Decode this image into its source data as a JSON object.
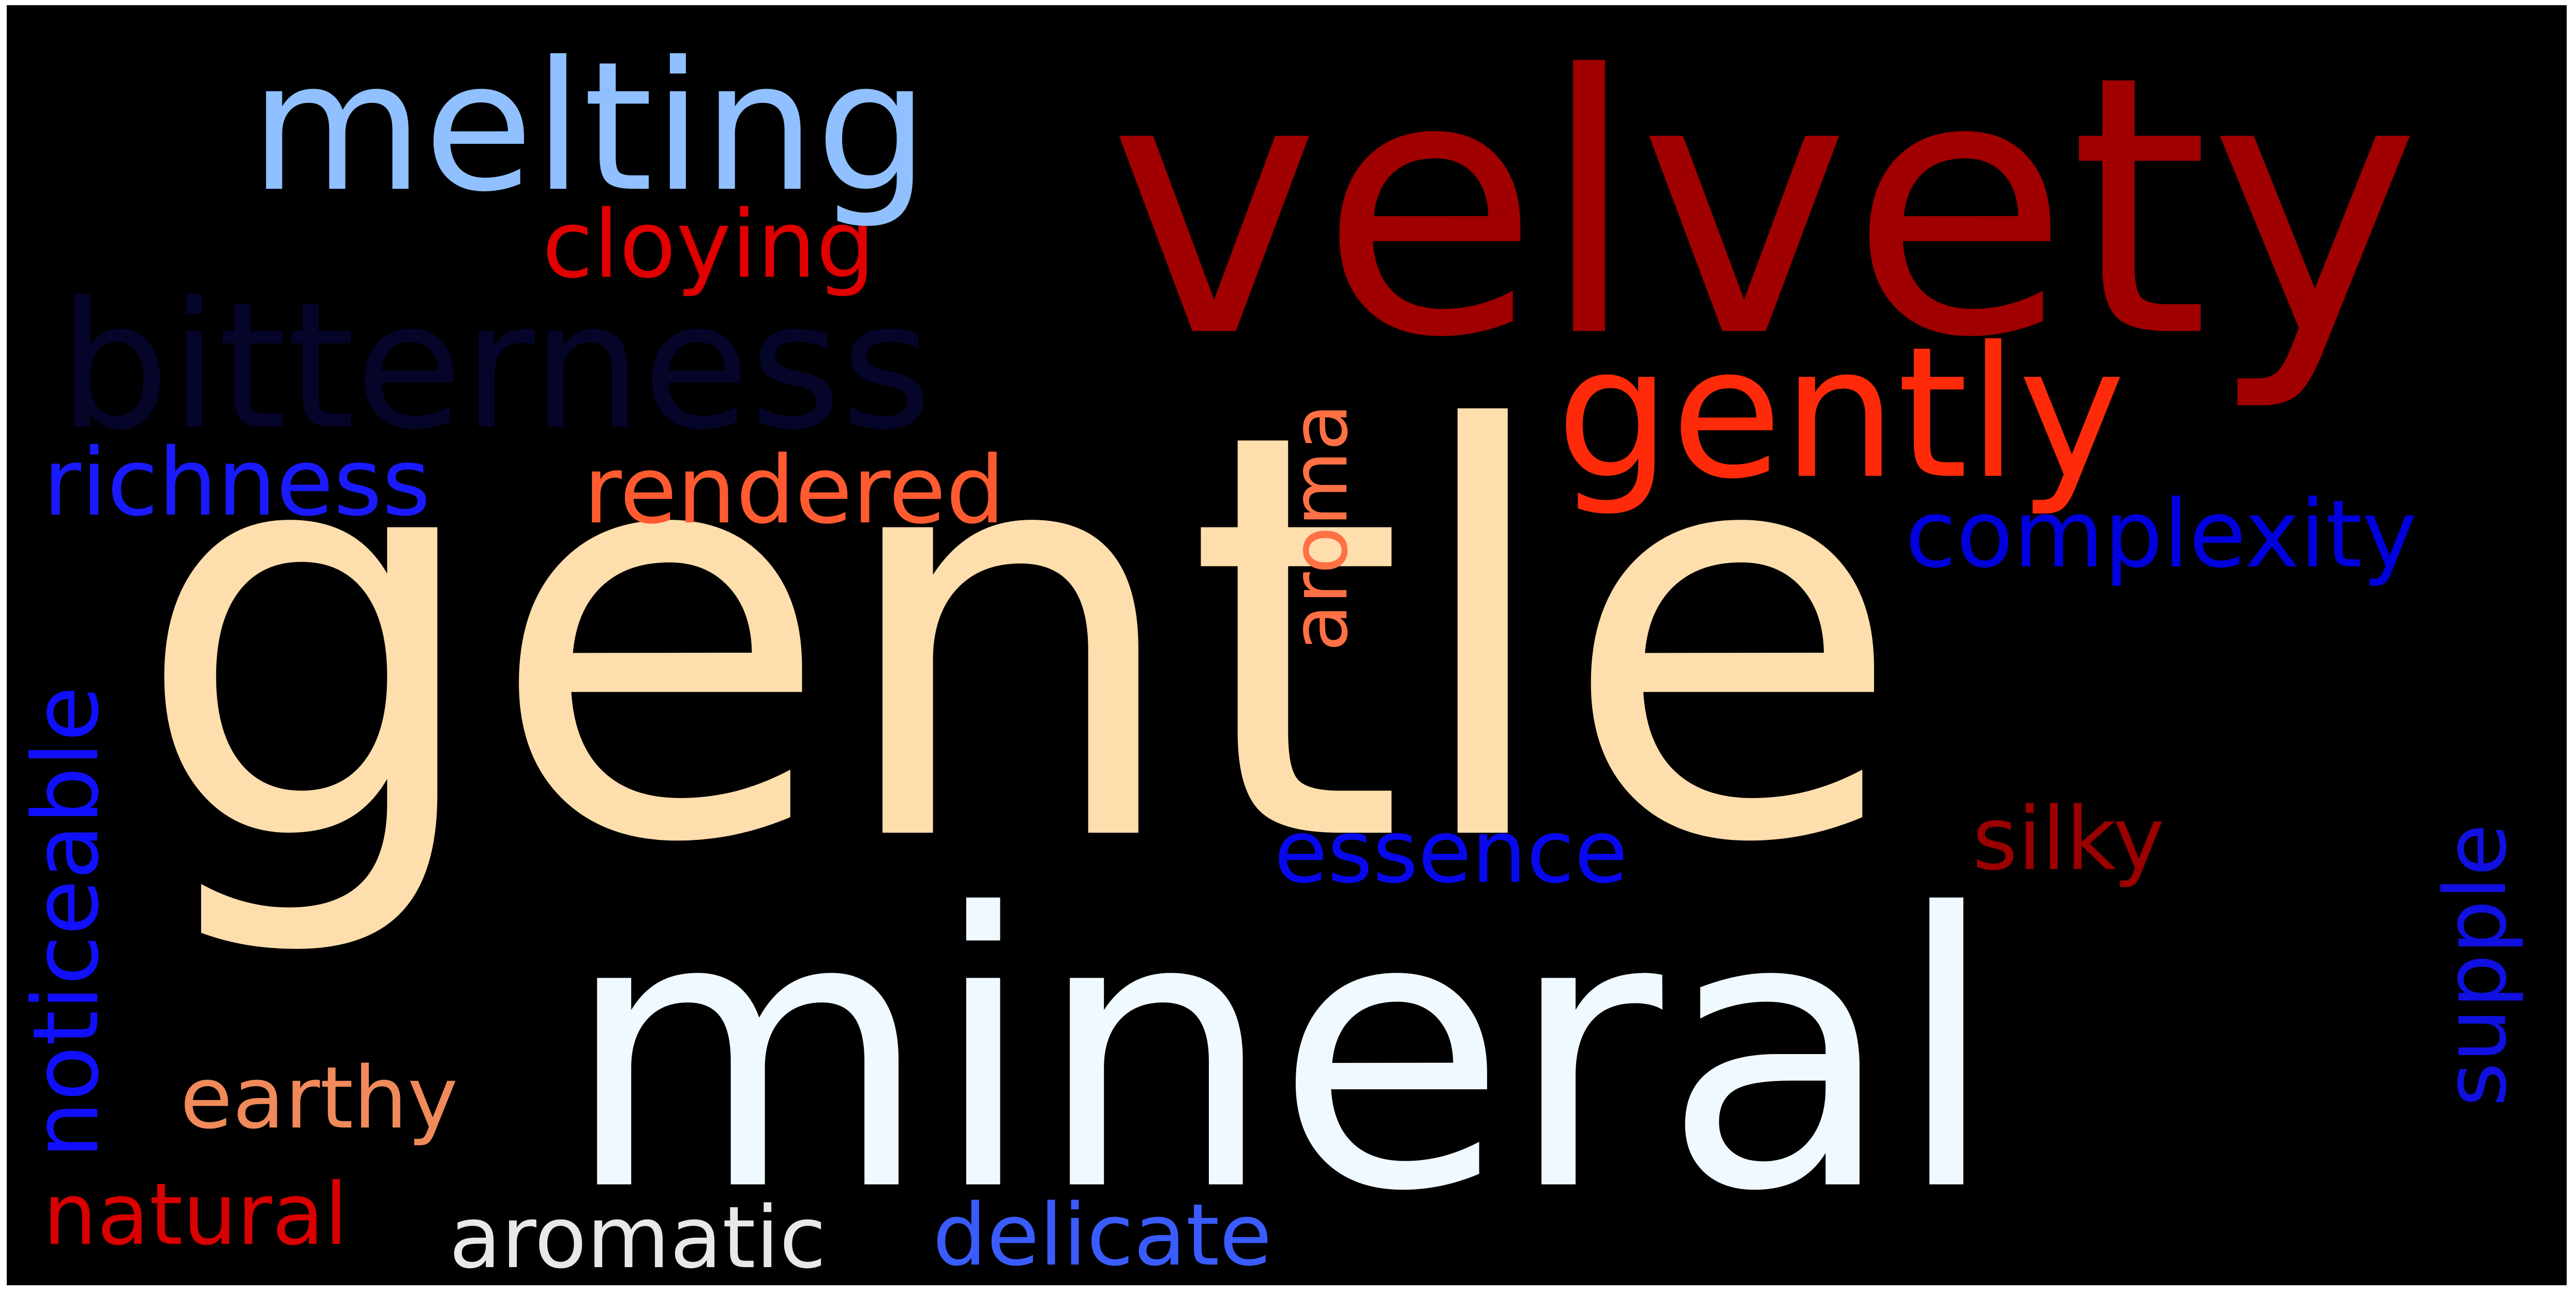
{
  "word_cloud": {
    "background_color": "#000000",
    "words": [
      {
        "text": "gentle",
        "color": "#ffdead"
      },
      {
        "text": "mineral",
        "color": "#f0f9ff"
      },
      {
        "text": "velvety",
        "color": "#a00000"
      },
      {
        "text": "melting",
        "color": "#90c0ff"
      },
      {
        "text": "bitterness",
        "color": "#05052a"
      },
      {
        "text": "gently",
        "color": "#ff2a0a"
      },
      {
        "text": "cloying",
        "color": "#e00000"
      },
      {
        "text": "richness",
        "color": "#1a1aff"
      },
      {
        "text": "rendered",
        "color": "#ff5a30"
      },
      {
        "text": "aroma",
        "color": "#ff7045"
      },
      {
        "text": "complexity",
        "color": "#0000dd"
      },
      {
        "text": "noticeable",
        "color": "#1010ff"
      },
      {
        "text": "essence",
        "color": "#0808ee"
      },
      {
        "text": "silky",
        "color": "#9a0000"
      },
      {
        "text": "supple",
        "color": "#1010e0"
      },
      {
        "text": "earthy",
        "color": "#f08a5a"
      },
      {
        "text": "natural",
        "color": "#d80000"
      },
      {
        "text": "aromatic",
        "color": "#e8e8e8"
      },
      {
        "text": "delicate",
        "color": "#3a5cff"
      }
    ]
  }
}
